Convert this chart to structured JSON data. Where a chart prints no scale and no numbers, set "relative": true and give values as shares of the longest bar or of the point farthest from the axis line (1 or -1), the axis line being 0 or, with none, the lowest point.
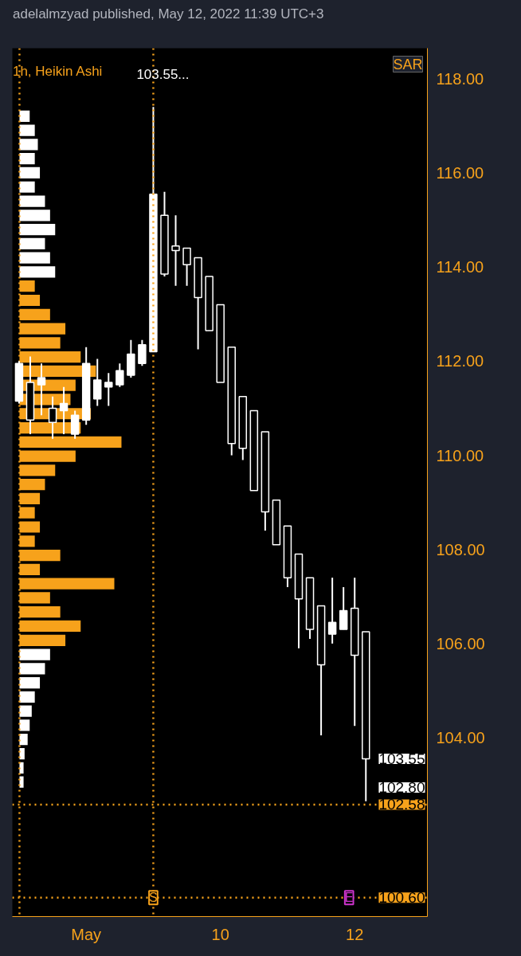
{
  "chart_data": [
    {
      "type": "candlestick",
      "title": "1h, Heikin Ashi",
      "subtitle": "103.55...",
      "annotations": [
        "adelalmzyad published, May 12, 2022 11:39 UTC+3",
        "SAR",
        "103.55",
        "102.80",
        "S",
        "E"
      ],
      "categories": [
        null,
        null,
        null,
        null,
        null,
        null,
        "May",
        null,
        null,
        null,
        null,
        null,
        null,
        null,
        null,
        null,
        null,
        null,
        "10",
        null,
        null,
        null,
        null,
        null,
        null,
        null,
        null,
        null,
        null,
        null,
        "12",
        null
      ],
      "ohlc": [
        [
          111.15,
          112.0,
          111.1,
          111.95
        ],
        [
          111.55,
          112.1,
          110.45,
          110.75
        ],
        [
          111.5,
          111.95,
          110.85,
          111.65
        ],
        [
          111.0,
          111.25,
          110.35,
          110.7
        ],
        [
          110.95,
          111.45,
          110.45,
          111.1
        ],
        [
          110.45,
          110.95,
          110.35,
          110.85
        ],
        [
          110.75,
          112.3,
          110.65,
          111.95
        ],
        [
          111.2,
          112.05,
          111.05,
          111.6
        ],
        [
          111.45,
          111.75,
          111.05,
          111.55
        ],
        [
          111.5,
          111.95,
          111.45,
          111.8
        ],
        [
          111.7,
          112.45,
          111.65,
          112.15
        ],
        [
          111.95,
          112.45,
          111.9,
          112.35
        ],
        [
          112.2,
          117.4,
          112.2,
          115.55
        ],
        [
          115.1,
          115.6,
          113.8,
          113.85
        ],
        [
          114.45,
          115.1,
          113.6,
          114.35
        ],
        [
          114.4,
          114.4,
          113.6,
          114.05
        ],
        [
          114.2,
          114.2,
          112.25,
          113.35
        ],
        [
          113.8,
          113.8,
          112.65,
          112.65
        ],
        [
          113.2,
          113.2,
          111.55,
          111.55
        ],
        [
          112.3,
          112.3,
          110.0,
          110.25
        ],
        [
          111.25,
          111.25,
          109.9,
          110.15
        ],
        [
          110.95,
          110.95,
          109.25,
          109.25
        ],
        [
          110.5,
          110.5,
          108.4,
          108.8
        ],
        [
          109.05,
          109.05,
          108.1,
          108.1
        ],
        [
          108.5,
          108.5,
          107.2,
          107.4
        ],
        [
          107.9,
          107.9,
          105.9,
          106.95
        ],
        [
          107.4,
          107.4,
          106.1,
          106.3
        ],
        [
          106.8,
          106.8,
          104.05,
          105.55
        ],
        [
          106.2,
          107.4,
          106.0,
          106.45
        ],
        [
          106.3,
          107.2,
          106.3,
          106.7
        ],
        [
          106.75,
          107.4,
          104.25,
          105.75
        ],
        [
          106.25,
          106.25,
          102.65,
          103.55
        ]
      ],
      "color": "#ffffff",
      "ylim": [
        100.2,
        118.65
      ],
      "yticks": [
        {
          "value": 104,
          "label": "104.00"
        },
        {
          "value": 106,
          "label": "106.00"
        },
        {
          "value": 108,
          "label": "108.00"
        },
        {
          "value": 110,
          "label": "110.00"
        },
        {
          "value": 112,
          "label": "112.00"
        },
        {
          "value": 114,
          "label": "114.00"
        },
        {
          "value": 116,
          "label": "116.00"
        },
        {
          "value": 118,
          "label": "118.00"
        }
      ],
      "ref_lines": [
        {
          "axis": "y",
          "value": 102.58,
          "label": "102.58",
          "color": "#f7a21b",
          "line_style": "dotted"
        },
        {
          "axis": "y",
          "value": 100.6,
          "label": "100.60",
          "color": "#f7a21b",
          "line_style": "dotted"
        }
      ]
    },
    {
      "type": "bar",
      "orientation": "horizontal",
      "relative": true,
      "categories": [
        null,
        null,
        null,
        null,
        null,
        null,
        null,
        null,
        null,
        null,
        null,
        null,
        null,
        null,
        null,
        null,
        null,
        null,
        null,
        null,
        null,
        null,
        null,
        null,
        null,
        null,
        null,
        null,
        null,
        null,
        null,
        null,
        null,
        null,
        null,
        null,
        null,
        null,
        null,
        null,
        null,
        null,
        null,
        null,
        null,
        null,
        null,
        null
      ],
      "values": [
        0.1,
        0.15,
        0.18,
        0.15,
        0.2,
        0.15,
        0.25,
        0.3,
        0.35,
        0.25,
        0.3,
        0.35,
        0.15,
        0.2,
        0.3,
        0.45,
        0.4,
        0.6,
        0.75,
        0.55,
        0.5,
        0.7,
        0.6,
        1.0,
        0.55,
        0.35,
        0.25,
        0.2,
        0.15,
        0.2,
        0.15,
        0.4,
        0.2,
        0.93,
        0.3,
        0.4,
        0.6,
        0.45,
        0.3,
        0.25,
        0.2,
        0.15,
        0.12,
        0.1,
        0.08,
        0.05,
        0.04,
        0.04
      ],
      "colors": [
        "#ffffff",
        "#ffffff",
        "#ffffff",
        "#ffffff",
        "#ffffff",
        "#ffffff",
        "#ffffff",
        "#ffffff",
        "#ffffff",
        "#ffffff",
        "#ffffff",
        "#ffffff",
        "#f7a21b",
        "#f7a21b",
        "#f7a21b",
        "#f7a21b",
        "#f7a21b",
        "#f7a21b",
        "#f7a21b",
        "#f7a21b",
        "#f7a21b",
        "#f7a21b",
        "#f7a21b",
        "#f7a21b",
        "#f7a21b",
        "#f7a21b",
        "#f7a21b",
        "#f7a21b",
        "#f7a21b",
        "#f7a21b",
        "#f7a21b",
        "#f7a21b",
        "#f7a21b",
        "#f7a21b",
        "#f7a21b",
        "#f7a21b",
        "#f7a21b",
        "#f7a21b",
        "#ffffff",
        "#ffffff",
        "#ffffff",
        "#ffffff",
        "#ffffff",
        "#ffffff",
        "#ffffff",
        "#ffffff",
        "#ffffff",
        "#ffffff"
      ]
    }
  ]
}
